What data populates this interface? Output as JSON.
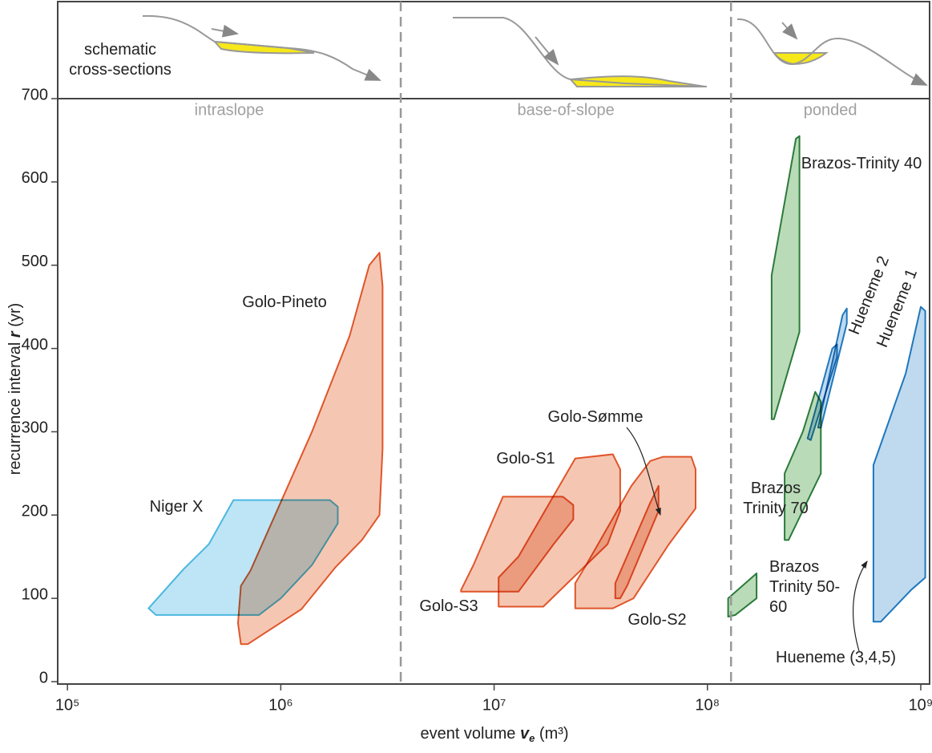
{
  "chart_data": {
    "type": "polygon",
    "xlabel": [
      "event volume",
      "v",
      "e",
      "(m³)"
    ],
    "ylabel": [
      "recurrence interval",
      "r",
      "(yr)"
    ],
    "xscale": "log",
    "xlim": [
      90000,
      1100000000
    ],
    "xticks": [
      {
        "value": 100000,
        "label": "10⁵"
      },
      {
        "value": 1000000,
        "label": "10⁶"
      },
      {
        "value": 10000000,
        "label": "10⁷"
      },
      {
        "value": 100000000,
        "label": "10⁸"
      },
      {
        "value": 1000000000,
        "label": "10⁹"
      }
    ],
    "ylim": [
      0,
      700
    ],
    "yticks": [
      0,
      100,
      200,
      300,
      400,
      500,
      600,
      700
    ],
    "schematic_label": "schematic cross-sections",
    "zones": [
      "intraslope",
      "base-of-slope",
      "ponded"
    ],
    "zone_boundaries": [
      3650000,
      129000000
    ],
    "series": [
      {
        "name": "Golo-Pineto",
        "color": "#e0552a",
        "fill": "#f2b49a",
        "x": [
          650000,
          630000,
          650000,
          720000,
          1400000,
          2100000,
          2600000,
          2900000,
          3000000,
          3000000,
          2900000,
          2400000,
          1800000,
          1250000,
          700000
        ],
        "values": [
          45,
          70,
          115,
          133,
          300,
          415,
          500,
          515,
          475,
          280,
          200,
          170,
          137,
          87,
          45
        ]
      },
      {
        "name": "Niger X",
        "color": "#4bb7e0",
        "fill": "#a8dcf1",
        "x": [
          600000,
          1700000,
          1850000,
          1850000,
          1400000,
          1000000,
          790000,
          260000,
          240000,
          350000,
          460000
        ],
        "values": [
          218,
          218,
          210,
          190,
          140,
          100,
          80,
          80,
          88,
          135,
          165
        ]
      },
      {
        "name": "Golo-S3",
        "color": "#e0552a",
        "fill": "#f2b49a",
        "x": [
          7000000,
          8000000,
          11000000,
          21000000,
          23500000,
          23500000,
          19000000,
          13000000,
          7000000
        ],
        "values": [
          110,
          140,
          222,
          222,
          212,
          195,
          165,
          108,
          108
        ]
      },
      {
        "name": "Golo-S1",
        "color": "#e0552a",
        "fill": "#f2b49a",
        "x": [
          10500000,
          10500000,
          13000000,
          24000000,
          36000000,
          39000000,
          39000000,
          34000000,
          17000000
        ],
        "values": [
          90,
          125,
          150,
          268,
          273,
          255,
          205,
          165,
          90
        ]
      },
      {
        "name": "Golo-S2",
        "color": "#e0552a",
        "fill": "#f2b49a",
        "x": [
          24000000,
          24000000,
          27000000,
          44000000,
          54000000,
          62000000,
          84000000,
          88000000,
          88000000,
          66000000,
          45000000,
          36000000
        ],
        "values": [
          88,
          118,
          140,
          235,
          265,
          270,
          270,
          255,
          208,
          165,
          100,
          88
        ]
      },
      {
        "name": "Golo-Sømme",
        "color": "#e0552a",
        "fill": "#f2b49a",
        "x": [
          37000000,
          37000000,
          54000000,
          59000000,
          59000000,
          42000000,
          39000000
        ],
        "values": [
          100,
          118,
          215,
          235,
          205,
          115,
          100
        ]
      },
      {
        "name": "Brazos-Trinity 40",
        "color": "#2b7a3b",
        "fill": "#a3cfa0",
        "x": [
          200000000,
          200000000,
          260000000,
          270000000,
          270000000,
          205000000
        ],
        "values": [
          315,
          488,
          652,
          655,
          420,
          315
        ]
      },
      {
        "name": "Brazos Trinity 70",
        "color": "#2b7a3b",
        "fill": "#a3cfa0",
        "x": [
          230000000,
          230000000,
          280000000,
          320000000,
          340000000,
          340000000,
          240000000
        ],
        "values": [
          170,
          250,
          300,
          348,
          336,
          250,
          170
        ]
      },
      {
        "name": "Brazos Trinity 50-60",
        "color": "#2b7a3b",
        "fill": "#a3cfa0",
        "x": [
          125000000,
          125000000,
          170000000,
          170000000,
          135000000
        ],
        "values": [
          78,
          100,
          130,
          100,
          80
        ]
      },
      {
        "name": "Hueneme 2",
        "color": "#1f77bd",
        "fill": "#a9cde8",
        "x": [
          295000000,
          385000000,
          405000000,
          405000000,
          305000000
        ],
        "values": [
          292,
          400,
          405,
          390,
          290
        ]
      },
      {
        "name": "Hueneme 1",
        "color": "#1f77bd",
        "fill": "#a9cde8",
        "x": [
          330000000,
          430000000,
          450000000,
          450000000,
          340000000
        ],
        "values": [
          305,
          440,
          448,
          430,
          305
        ]
      },
      {
        "name": "Hueneme (3,4,5)",
        "color": "#1f77bd",
        "fill": "#a9cde8",
        "x": [
          600000000,
          600000000,
          850000000,
          1000000000,
          1050000000,
          1050000000,
          900000000,
          650000000
        ],
        "values": [
          72,
          260,
          370,
          450,
          445,
          125,
          110,
          72
        ]
      }
    ]
  }
}
